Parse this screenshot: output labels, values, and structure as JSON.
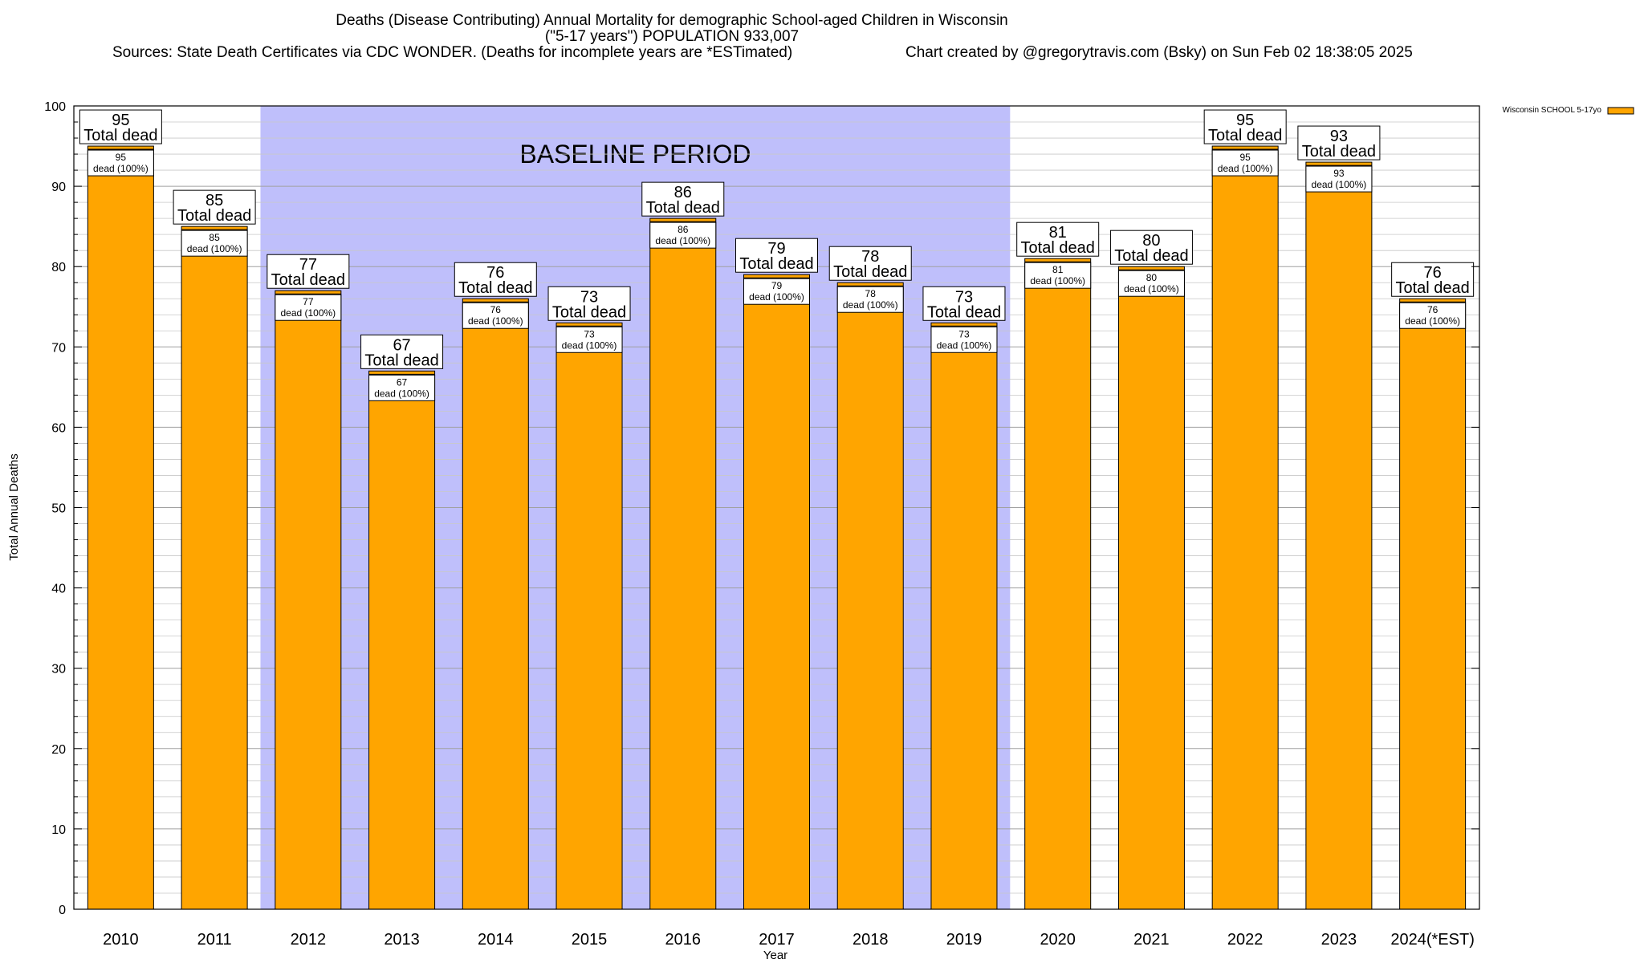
{
  "chart_data": {
    "type": "bar",
    "title": "Deaths (Disease Contributing) Annual Mortality for demographic School-aged Children in Wisconsin",
    "subtitle": "(\"5-17 years\") POPULATION 933,007",
    "sources": "Sources: State Death Certificates via CDC WONDER. (Deaths for incomplete years are *ESTimated)",
    "credit": "Chart created by @gregorytravis.com (Bsky) on Sun Feb 02 18:38:05 2025",
    "xlabel": "Year",
    "ylabel": "Total Annual Deaths",
    "ylim": [
      0,
      100
    ],
    "y_ticks": [
      "0",
      "10",
      "20",
      "30",
      "40",
      "50",
      "60",
      "70",
      "80",
      "90",
      "100"
    ],
    "grid": true,
    "legend": {
      "position": "top-right",
      "entries": [
        "Wisconsin SCHOOL 5-17yo"
      ]
    },
    "baseline": {
      "label": "BASELINE PERIOD",
      "from": "2012",
      "to": "2019",
      "color": "#bfbffb"
    },
    "bar_color": "#ffa500",
    "categories": [
      "2010",
      "2011",
      "2012",
      "2013",
      "2014",
      "2015",
      "2016",
      "2017",
      "2018",
      "2019",
      "2020",
      "2021",
      "2022",
      "2023",
      "2024(*EST)"
    ],
    "series": [
      {
        "name": "Wisconsin SCHOOL 5-17yo",
        "values": [
          95,
          85,
          77,
          67,
          76,
          73,
          86,
          79,
          78,
          73,
          81,
          80,
          95,
          93,
          76
        ]
      }
    ],
    "total_label_suffix": "Total dead",
    "segment_label_suffix": "dead (100%)"
  }
}
